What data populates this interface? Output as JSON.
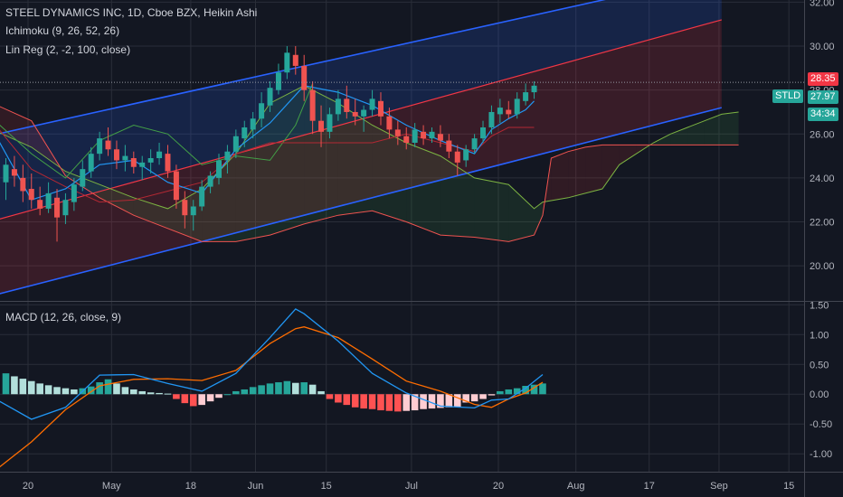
{
  "header": {
    "title": "STEEL DYNAMICS INC, 1D, Cboe BZX, Heikin Ashi",
    "ichimoku_label": "Ichimoku (9, 26, 52, 26)",
    "linreg_label": "Lin Reg (2, -2, 100, close)",
    "macd_label": "MACD (12, 26, close, 9)"
  },
  "price_tags": {
    "high": "28.35",
    "symbol": "STLD",
    "last": "27.97",
    "countdown": "34:34"
  },
  "colors": {
    "background": "#131722",
    "up": "#26a69a",
    "down": "#ef5350",
    "channel_upper": "#2962ff",
    "channel_mid": "#f23645",
    "macd_line": "#2196f3",
    "signal_line": "#ff6d00",
    "tenkan": "#2196f3",
    "kijun": "#b22833",
    "span_a": "#7cb342",
    "span_b": "#ef5350",
    "lagging": "#43a047"
  },
  "chart_data": [
    {
      "type": "candlestick",
      "title": "STEEL DYNAMICS INC, 1D, Cboe BZX, Heikin Ashi",
      "y_ticks": [
        "32.00",
        "30.00",
        "28.00",
        "26.00",
        "24.00",
        "22.00",
        "20.00"
      ],
      "ylim": [
        18.4,
        32.1
      ],
      "x_ticks": [
        "20",
        "May",
        "18",
        "Jun",
        "15",
        "Jul",
        "20",
        "Aug",
        "17",
        "Sep",
        "15"
      ],
      "bars": [
        {
          "o": 23.8,
          "h": 24.9,
          "l": 23.0,
          "c": 24.6
        },
        {
          "o": 24.4,
          "h": 25.0,
          "l": 23.6,
          "c": 24.1
        },
        {
          "o": 24.0,
          "h": 24.6,
          "l": 22.9,
          "c": 23.4
        },
        {
          "o": 23.5,
          "h": 24.2,
          "l": 22.6,
          "c": 23.0
        },
        {
          "o": 23.0,
          "h": 23.6,
          "l": 22.3,
          "c": 22.6
        },
        {
          "o": 22.6,
          "h": 23.8,
          "l": 22.4,
          "c": 23.3
        },
        {
          "o": 23.1,
          "h": 23.5,
          "l": 21.1,
          "c": 22.2
        },
        {
          "o": 22.3,
          "h": 23.3,
          "l": 21.9,
          "c": 23.0
        },
        {
          "o": 22.9,
          "h": 24.0,
          "l": 22.5,
          "c": 23.7
        },
        {
          "o": 23.6,
          "h": 24.8,
          "l": 23.4,
          "c": 24.4
        },
        {
          "o": 24.3,
          "h": 25.4,
          "l": 24.0,
          "c": 25.1
        },
        {
          "o": 25.1,
          "h": 26.1,
          "l": 24.8,
          "c": 25.8
        },
        {
          "o": 25.7,
          "h": 26.3,
          "l": 25.0,
          "c": 25.3
        },
        {
          "o": 25.3,
          "h": 25.7,
          "l": 24.4,
          "c": 24.8
        },
        {
          "o": 24.8,
          "h": 25.5,
          "l": 24.3,
          "c": 25.0
        },
        {
          "o": 24.9,
          "h": 25.2,
          "l": 24.2,
          "c": 24.5
        },
        {
          "o": 24.5,
          "h": 25.0,
          "l": 23.9,
          "c": 24.7
        },
        {
          "o": 24.7,
          "h": 25.3,
          "l": 24.2,
          "c": 24.9
        },
        {
          "o": 24.9,
          "h": 25.6,
          "l": 24.6,
          "c": 25.2
        },
        {
          "o": 25.1,
          "h": 25.5,
          "l": 24.0,
          "c": 24.3
        },
        {
          "o": 24.3,
          "h": 24.6,
          "l": 22.6,
          "c": 23.0
        },
        {
          "o": 23.0,
          "h": 23.4,
          "l": 21.7,
          "c": 22.3
        },
        {
          "o": 22.3,
          "h": 23.0,
          "l": 21.6,
          "c": 22.7
        },
        {
          "o": 22.7,
          "h": 23.9,
          "l": 22.5,
          "c": 23.6
        },
        {
          "o": 23.6,
          "h": 24.3,
          "l": 23.3,
          "c": 24.1
        },
        {
          "o": 24.0,
          "h": 25.1,
          "l": 23.7,
          "c": 24.8
        },
        {
          "o": 24.8,
          "h": 25.5,
          "l": 24.2,
          "c": 25.2
        },
        {
          "o": 25.2,
          "h": 26.2,
          "l": 24.9,
          "c": 25.9
        },
        {
          "o": 25.8,
          "h": 26.6,
          "l": 25.4,
          "c": 26.3
        },
        {
          "o": 26.2,
          "h": 27.0,
          "l": 25.8,
          "c": 26.7
        },
        {
          "o": 26.7,
          "h": 27.9,
          "l": 26.3,
          "c": 27.4
        },
        {
          "o": 27.3,
          "h": 28.4,
          "l": 27.0,
          "c": 28.1
        },
        {
          "o": 28.0,
          "h": 29.2,
          "l": 27.8,
          "c": 28.8
        },
        {
          "o": 28.8,
          "h": 30.0,
          "l": 28.5,
          "c": 29.7
        },
        {
          "o": 29.6,
          "h": 30.0,
          "l": 28.7,
          "c": 29.1
        },
        {
          "o": 29.1,
          "h": 29.6,
          "l": 27.5,
          "c": 28.0
        },
        {
          "o": 28.0,
          "h": 28.4,
          "l": 26.0,
          "c": 26.6
        },
        {
          "o": 26.6,
          "h": 27.3,
          "l": 25.4,
          "c": 26.1
        },
        {
          "o": 26.1,
          "h": 27.2,
          "l": 25.8,
          "c": 26.9
        },
        {
          "o": 26.9,
          "h": 28.0,
          "l": 26.6,
          "c": 27.6
        },
        {
          "o": 27.6,
          "h": 28.2,
          "l": 26.7,
          "c": 27.0
        },
        {
          "o": 27.0,
          "h": 27.6,
          "l": 26.4,
          "c": 26.8
        },
        {
          "o": 26.8,
          "h": 27.3,
          "l": 26.1,
          "c": 27.1
        },
        {
          "o": 27.1,
          "h": 28.0,
          "l": 26.8,
          "c": 27.6
        },
        {
          "o": 27.5,
          "h": 27.9,
          "l": 26.4,
          "c": 26.8
        },
        {
          "o": 26.8,
          "h": 27.2,
          "l": 25.8,
          "c": 26.2
        },
        {
          "o": 26.2,
          "h": 26.6,
          "l": 25.5,
          "c": 25.9
        },
        {
          "o": 25.9,
          "h": 26.3,
          "l": 25.3,
          "c": 25.6
        },
        {
          "o": 25.6,
          "h": 26.5,
          "l": 25.4,
          "c": 26.2
        },
        {
          "o": 26.1,
          "h": 26.4,
          "l": 25.5,
          "c": 25.8
        },
        {
          "o": 25.8,
          "h": 26.3,
          "l": 25.6,
          "c": 26.1
        },
        {
          "o": 26.0,
          "h": 26.4,
          "l": 25.4,
          "c": 25.7
        },
        {
          "o": 25.7,
          "h": 26.0,
          "l": 24.9,
          "c": 25.2
        },
        {
          "o": 25.2,
          "h": 25.5,
          "l": 24.1,
          "c": 24.7
        },
        {
          "o": 24.8,
          "h": 25.5,
          "l": 24.5,
          "c": 25.3
        },
        {
          "o": 25.3,
          "h": 26.0,
          "l": 25.1,
          "c": 25.8
        },
        {
          "o": 25.8,
          "h": 26.6,
          "l": 25.6,
          "c": 26.3
        },
        {
          "o": 26.3,
          "h": 27.3,
          "l": 26.0,
          "c": 27.0
        },
        {
          "o": 26.9,
          "h": 27.6,
          "l": 26.5,
          "c": 27.2
        },
        {
          "o": 27.1,
          "h": 27.5,
          "l": 26.7,
          "c": 26.9
        },
        {
          "o": 26.9,
          "h": 27.9,
          "l": 26.7,
          "c": 27.6
        },
        {
          "o": 27.5,
          "h": 28.3,
          "l": 27.3,
          "c": 27.9
        },
        {
          "o": 27.9,
          "h": 28.4,
          "l": 27.6,
          "c": 28.2
        }
      ],
      "channel": {
        "upper": [
          [
            -1,
            26.0
          ],
          [
            84,
            33.3
          ]
        ],
        "mid": [
          [
            -1,
            22.1
          ],
          [
            84,
            31.2
          ]
        ],
        "lower": [
          [
            -1,
            18.7
          ],
          [
            84,
            27.2
          ]
        ]
      },
      "ichimoku": {
        "span_a": [
          [
            -1,
            26.1
          ],
          [
            3,
            25.4
          ],
          [
            7,
            24.3
          ],
          [
            11,
            23.7
          ],
          [
            15,
            23.1
          ],
          [
            19,
            22.6
          ],
          [
            23,
            23.5
          ],
          [
            27,
            25.1
          ],
          [
            31,
            27.4
          ],
          [
            35,
            28.2
          ],
          [
            39,
            27.4
          ],
          [
            43,
            26.4
          ],
          [
            47,
            25.6
          ],
          [
            51,
            25.0
          ],
          [
            55,
            24.0
          ],
          [
            59,
            23.7
          ],
          [
            62,
            22.6
          ],
          [
            63,
            22.9
          ],
          [
            66,
            23.1
          ],
          [
            70,
            23.5
          ],
          [
            72,
            24.6
          ],
          [
            74,
            25.1
          ],
          [
            76,
            25.6
          ],
          [
            78,
            26.0
          ],
          [
            80,
            26.3
          ],
          [
            82,
            26.6
          ],
          [
            84,
            26.9
          ],
          [
            86,
            27.0
          ]
        ],
        "span_b": [
          [
            -1,
            27.3
          ],
          [
            3,
            26.6
          ],
          [
            7,
            24.1
          ],
          [
            11,
            23.1
          ],
          [
            15,
            22.3
          ],
          [
            19,
            21.7
          ],
          [
            23,
            21.1
          ],
          [
            27,
            21.1
          ],
          [
            31,
            21.4
          ],
          [
            35,
            21.9
          ],
          [
            39,
            22.3
          ],
          [
            43,
            22.5
          ],
          [
            47,
            22.0
          ],
          [
            51,
            21.4
          ],
          [
            55,
            21.3
          ],
          [
            59,
            21.1
          ],
          [
            62,
            21.4
          ],
          [
            63,
            22.3
          ],
          [
            64,
            24.9
          ],
          [
            66,
            25.2
          ],
          [
            68,
            25.4
          ],
          [
            70,
            25.5
          ],
          [
            86,
            25.5
          ]
        ],
        "tenkan": [
          [
            -1,
            25.8
          ],
          [
            3,
            23.0
          ],
          [
            7,
            23.5
          ],
          [
            11,
            24.6
          ],
          [
            15,
            24.8
          ],
          [
            19,
            23.8
          ],
          [
            23,
            23.3
          ],
          [
            27,
            25.3
          ],
          [
            31,
            26.5
          ],
          [
            35,
            28.2
          ],
          [
            39,
            27.9
          ],
          [
            43,
            27.3
          ],
          [
            47,
            26.4
          ],
          [
            51,
            25.7
          ],
          [
            55,
            25.1
          ],
          [
            57,
            26.2
          ],
          [
            59,
            26.7
          ],
          [
            61,
            27.1
          ],
          [
            62,
            27.5
          ]
        ],
        "kijun": [
          [
            -1,
            26.3
          ],
          [
            3,
            24.4
          ],
          [
            7,
            23.6
          ],
          [
            11,
            22.9
          ],
          [
            15,
            23.0
          ],
          [
            19,
            23.4
          ],
          [
            23,
            23.8
          ],
          [
            27,
            25.1
          ],
          [
            31,
            25.6
          ],
          [
            35,
            25.6
          ],
          [
            39,
            25.6
          ],
          [
            43,
            25.6
          ],
          [
            47,
            26.0
          ],
          [
            51,
            25.6
          ],
          [
            55,
            25.2
          ],
          [
            57,
            25.9
          ],
          [
            59,
            26.3
          ],
          [
            62,
            26.3
          ]
        ],
        "lagging": [
          [
            -1,
            26.5
          ],
          [
            3,
            25.1
          ],
          [
            7,
            24.0
          ],
          [
            11,
            25.7
          ],
          [
            15,
            26.4
          ],
          [
            19,
            26.0
          ],
          [
            23,
            24.6
          ],
          [
            27,
            25.0
          ],
          [
            31,
            24.8
          ],
          [
            34,
            26.4
          ],
          [
            36,
            28.3
          ]
        ]
      }
    },
    {
      "type": "macd",
      "title": "MACD (12, 26, close, 9)",
      "y_ticks": [
        "1.50",
        "1.00",
        "0.50",
        "0.00",
        "-0.50",
        "-1.00"
      ],
      "ylim": [
        -1.3,
        1.55
      ],
      "histogram": [
        0.35,
        0.3,
        0.26,
        0.22,
        0.18,
        0.15,
        0.12,
        0.1,
        0.08,
        0.1,
        0.13,
        0.2,
        0.25,
        0.18,
        0.12,
        0.08,
        0.05,
        0.03,
        0.02,
        0.01,
        -0.08,
        -0.15,
        -0.2,
        -0.18,
        -0.12,
        -0.06,
        0.0,
        0.05,
        0.08,
        0.12,
        0.15,
        0.18,
        0.2,
        0.22,
        0.19,
        0.2,
        0.16,
        0.05,
        -0.08,
        -0.14,
        -0.18,
        -0.22,
        -0.24,
        -0.25,
        -0.27,
        -0.28,
        -0.29,
        -0.28,
        -0.27,
        -0.25,
        -0.24,
        -0.23,
        -0.22,
        -0.21,
        -0.14,
        -0.12,
        -0.08,
        -0.02,
        0.05,
        0.08,
        0.1,
        0.14,
        0.16,
        0.18
      ],
      "macd": [
        [
          -1,
          -0.1
        ],
        [
          3,
          -0.42
        ],
        [
          7,
          -0.22
        ],
        [
          11,
          0.32
        ],
        [
          15,
          0.33
        ],
        [
          19,
          0.18
        ],
        [
          23,
          0.05
        ],
        [
          27,
          0.35
        ],
        [
          31,
          0.95
        ],
        [
          34,
          1.43
        ],
        [
          35,
          1.35
        ],
        [
          39,
          0.89
        ],
        [
          43,
          0.35
        ],
        [
          47,
          0.02
        ],
        [
          51,
          -0.2
        ],
        [
          55,
          -0.23
        ],
        [
          57,
          -0.1
        ],
        [
          59,
          -0.08
        ],
        [
          61,
          0.1
        ],
        [
          63,
          0.33
        ]
      ],
      "signal": [
        [
          -1,
          -1.25
        ],
        [
          3,
          -0.8
        ],
        [
          7,
          -0.26
        ],
        [
          11,
          0.14
        ],
        [
          15,
          0.25
        ],
        [
          19,
          0.26
        ],
        [
          23,
          0.23
        ],
        [
          27,
          0.4
        ],
        [
          31,
          0.85
        ],
        [
          34,
          1.1
        ],
        [
          35,
          1.13
        ],
        [
          39,
          0.95
        ],
        [
          43,
          0.59
        ],
        [
          47,
          0.22
        ],
        [
          51,
          0.05
        ],
        [
          55,
          -0.17
        ],
        [
          57,
          -0.22
        ],
        [
          59,
          -0.08
        ],
        [
          61,
          0.02
        ],
        [
          63,
          0.2
        ]
      ]
    }
  ]
}
